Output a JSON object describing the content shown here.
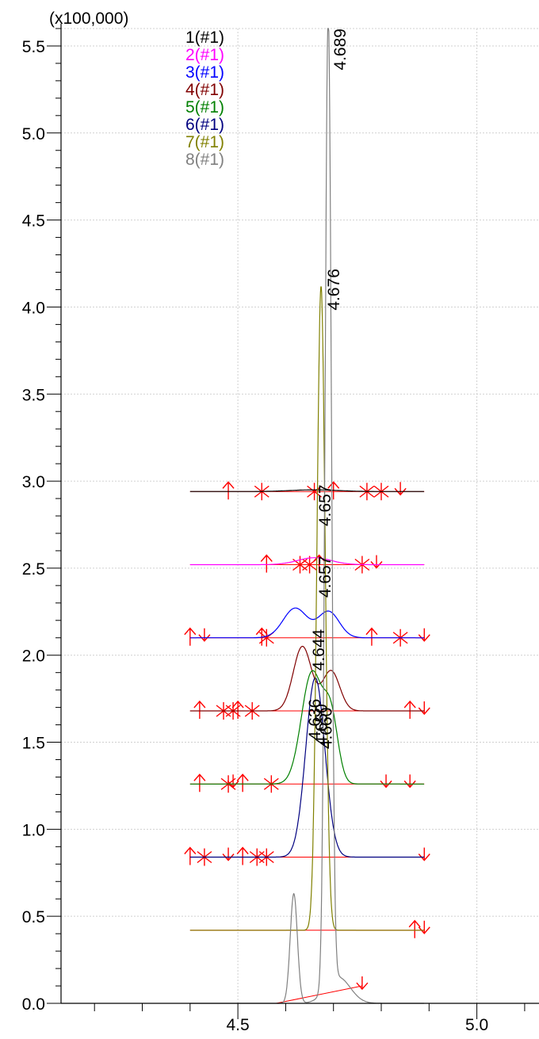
{
  "chart_data": {
    "type": "line",
    "title": "",
    "xlabel": "",
    "ylabel": "",
    "y_multiplier_label": "(x100,000)",
    "xlim": [
      4.13,
      5.13
    ],
    "ylim": [
      0.0,
      5.6
    ],
    "grid": true,
    "legend_placement": "top-center",
    "x_ticks": [
      {
        "v": 4.5,
        "label": "4.5"
      },
      {
        "v": 5.0,
        "label": "5.0"
      }
    ],
    "y_ticks": [
      {
        "v": 0.0,
        "label": "0.0"
      },
      {
        "v": 0.5,
        "label": "0.5"
      },
      {
        "v": 1.0,
        "label": "1.0"
      },
      {
        "v": 1.5,
        "label": "1.5"
      },
      {
        "v": 2.0,
        "label": "2.0"
      },
      {
        "v": 2.5,
        "label": "2.5"
      },
      {
        "v": 3.0,
        "label": "3.0"
      },
      {
        "v": 3.5,
        "label": "3.5"
      },
      {
        "v": 4.0,
        "label": "4.0"
      },
      {
        "v": 4.5,
        "label": "4.5"
      },
      {
        "v": 5.0,
        "label": "5.0"
      },
      {
        "v": 5.5,
        "label": "5.5"
      }
    ],
    "series": [
      {
        "name": "1(#1)",
        "color": "#000000",
        "baseline": 2.94,
        "x_start": 4.4,
        "x_end": 4.89,
        "peaks": [
          {
            "center": 4.66,
            "height": 0.01,
            "width": 0.05
          }
        ]
      },
      {
        "name": "2(#1)",
        "color": "#ff00ff",
        "baseline": 2.52,
        "x_start": 4.4,
        "x_end": 4.89,
        "peaks": [
          {
            "center": 4.66,
            "height": 0.04,
            "width": 0.035
          }
        ]
      },
      {
        "name": "3(#1)",
        "color": "#0000ff",
        "baseline": 2.1,
        "x_start": 4.4,
        "x_end": 4.89,
        "peaks": [
          {
            "center": 4.62,
            "height": 0.17,
            "width": 0.025
          },
          {
            "center": 4.69,
            "height": 0.15,
            "width": 0.022
          }
        ]
      },
      {
        "name": "4(#1)",
        "color": "#800000",
        "baseline": 1.68,
        "x_start": 4.4,
        "x_end": 4.89,
        "peaks": [
          {
            "center": 4.635,
            "height": 0.37,
            "width": 0.019
          },
          {
            "center": 4.695,
            "height": 0.23,
            "width": 0.018
          }
        ]
      },
      {
        "name": "5(#1)",
        "color": "#008000",
        "baseline": 1.26,
        "x_start": 4.4,
        "x_end": 4.89,
        "peaks": [
          {
            "center": 4.655,
            "height": 0.64,
            "width": 0.022
          },
          {
            "center": 4.695,
            "height": 0.35,
            "width": 0.015
          }
        ]
      },
      {
        "name": "6(#1)",
        "color": "#000080",
        "baseline": 0.84,
        "x_start": 4.4,
        "x_end": 4.89,
        "peaks": [
          {
            "center": 4.662,
            "height": 1.03,
            "width": 0.02
          }
        ]
      },
      {
        "name": "7(#1)",
        "color": "#808000",
        "baseline": 0.42,
        "x_start": 4.4,
        "x_end": 4.89,
        "peaks": [
          {
            "center": 4.674,
            "height": 3.7,
            "width": 0.0085
          }
        ]
      },
      {
        "name": "8(#1)",
        "color": "#808080",
        "baseline": 0.0,
        "x_start": 4.4,
        "x_end": 4.89,
        "peaks": [
          {
            "center": 4.617,
            "height": 0.63,
            "width": 0.0075
          },
          {
            "center": 4.689,
            "height": 5.6,
            "width": 0.0065
          },
          {
            "center": 4.71,
            "height": 0.15,
            "width": 0.025
          }
        ]
      }
    ],
    "peak_labels": [
      {
        "x": 4.689,
        "y": 5.6,
        "text": "4.689"
      },
      {
        "x": 4.676,
        "y": 4.22,
        "text": "4.676"
      },
      {
        "x": 4.657,
        "y": 2.98,
        "text": "4.657"
      },
      {
        "x": 4.657,
        "y": 2.57,
        "text": "4.657"
      },
      {
        "x": 4.644,
        "y": 2.15,
        "text": "4.644"
      },
      {
        "x": 4.636,
        "y": 1.75,
        "text": "4.636"
      },
      {
        "x": 4.65,
        "y": 1.72,
        "text": "4.650"
      },
      {
        "x": 4.66,
        "y": 1.7,
        "text": "4.660"
      }
    ]
  }
}
